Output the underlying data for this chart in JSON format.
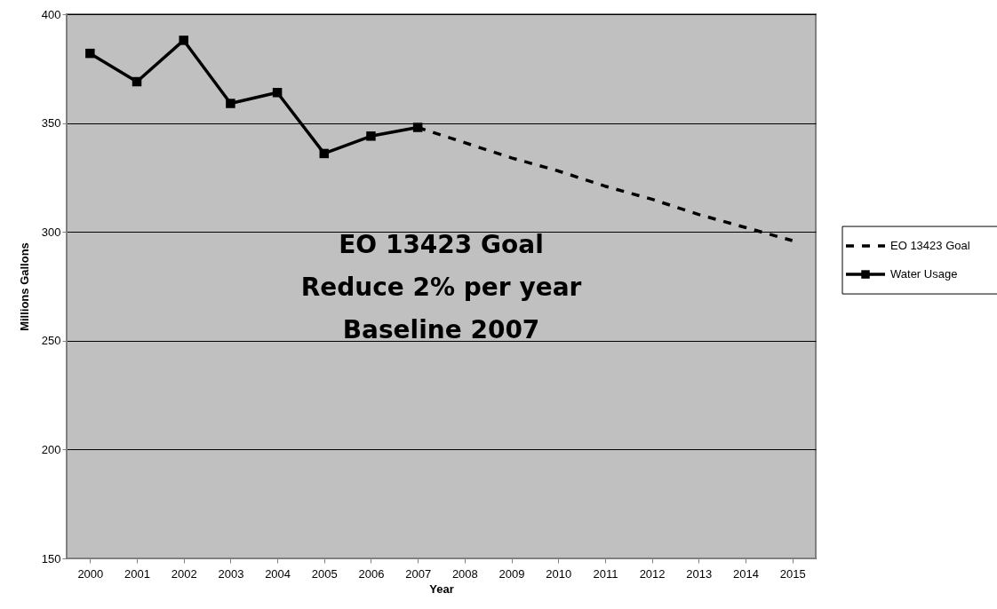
{
  "chart_data": {
    "type": "line",
    "xlabel": "Year",
    "ylabel": "Millions Gallons",
    "categories": [
      "2000",
      "2001",
      "2002",
      "2003",
      "2004",
      "2005",
      "2006",
      "2007",
      "2008",
      "2009",
      "2010",
      "2011",
      "2012",
      "2013",
      "2014",
      "2015"
    ],
    "series": [
      {
        "name": "EO 13423 Goal",
        "color": "#000000",
        "line_style": "dashed",
        "marker": "none",
        "values": [
          null,
          null,
          null,
          null,
          null,
          null,
          null,
          348,
          341,
          334,
          328,
          321,
          315,
          308,
          302,
          296
        ]
      },
      {
        "name": "Water Usage",
        "color": "#000000",
        "line_style": "solid",
        "marker": "square",
        "values": [
          382,
          369,
          388,
          359,
          364,
          336,
          344,
          348,
          null,
          null,
          null,
          null,
          null,
          null,
          null,
          null
        ]
      }
    ],
    "ylim": [
      150,
      400
    ],
    "yticks": [
      150,
      200,
      250,
      300,
      350,
      400
    ],
    "grid": "y",
    "legend": "right",
    "annotations": [
      "EO 13423 Goal",
      "Reduce 2% per year",
      "Baseline 2007"
    ]
  }
}
